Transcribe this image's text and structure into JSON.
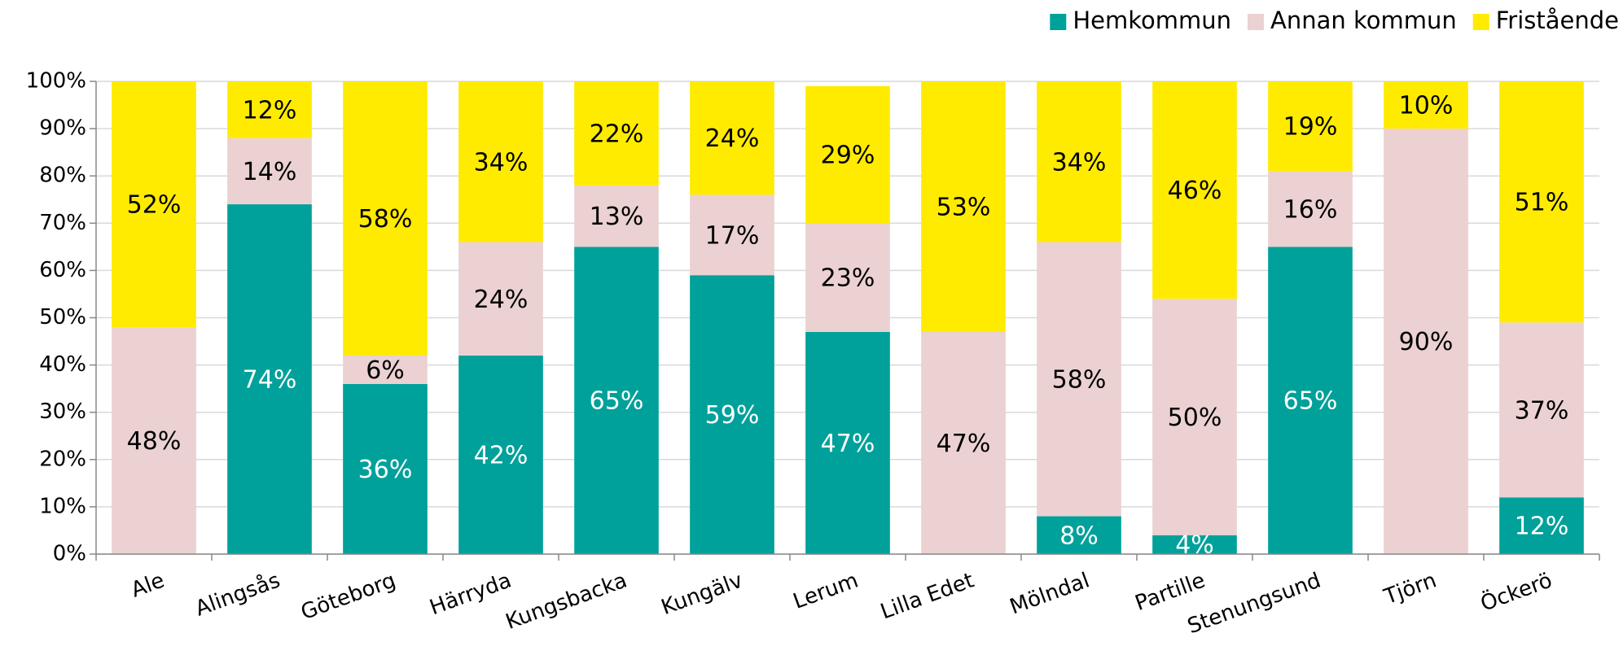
{
  "chart_data": {
    "type": "stacked_bar",
    "categories": [
      "Ale",
      "Alingsås",
      "Göteborg",
      "Härryda",
      "Kungsbacka",
      "Kungälv",
      "Lerum",
      "Lilla Edet",
      "Mölndal",
      "Partille",
      "Stenungsund",
      "Tjörn",
      "Öckerö"
    ],
    "series": [
      {
        "name": "Hemkommun",
        "color": "#00a19a",
        "values": [
          null,
          74,
          36,
          42,
          65,
          59,
          47,
          null,
          8,
          4,
          65,
          null,
          12
        ],
        "value_labels": [
          null,
          "74%",
          "36%",
          "42%",
          "65%",
          "59%",
          "47%",
          null,
          "8%",
          "4%",
          "65%",
          null,
          "12%"
        ]
      },
      {
        "name": "Annan kommun",
        "color": "#ebd1d1",
        "values": [
          48,
          14,
          6,
          24,
          13,
          17,
          23,
          47,
          58,
          50,
          16,
          90,
          37
        ],
        "value_labels": [
          "48%",
          "14%",
          "6%",
          "24%",
          "13%",
          "17%",
          "23%",
          "47%",
          "58%",
          "50%",
          "16%",
          "90%",
          "37%"
        ]
      },
      {
        "name": "Fristående",
        "color": "#ffeb00",
        "values": [
          52,
          12,
          58,
          34,
          22,
          24,
          29,
          53,
          34,
          46,
          19,
          10,
          51
        ],
        "value_labels": [
          "52%",
          "12%",
          "58%",
          "34%",
          "22%",
          "24%",
          "29%",
          "53%",
          "34%",
          "46%",
          "19%",
          "10%",
          "51%"
        ]
      }
    ],
    "ylim": [
      0,
      100
    ],
    "yticks": [
      {
        "value": 0,
        "label": "0%"
      },
      {
        "value": 10,
        "label": "10%"
      },
      {
        "value": 20,
        "label": "20%"
      },
      {
        "value": 30,
        "label": "30%"
      },
      {
        "value": 40,
        "label": "40%"
      },
      {
        "value": 50,
        "label": "50%"
      },
      {
        "value": 60,
        "label": "60%"
      },
      {
        "value": 70,
        "label": "70%"
      },
      {
        "value": 80,
        "label": "80%"
      },
      {
        "value": 90,
        "label": "90%"
      },
      {
        "value": 100,
        "label": "100%"
      }
    ],
    "grid": true,
    "legend": "top-right"
  }
}
